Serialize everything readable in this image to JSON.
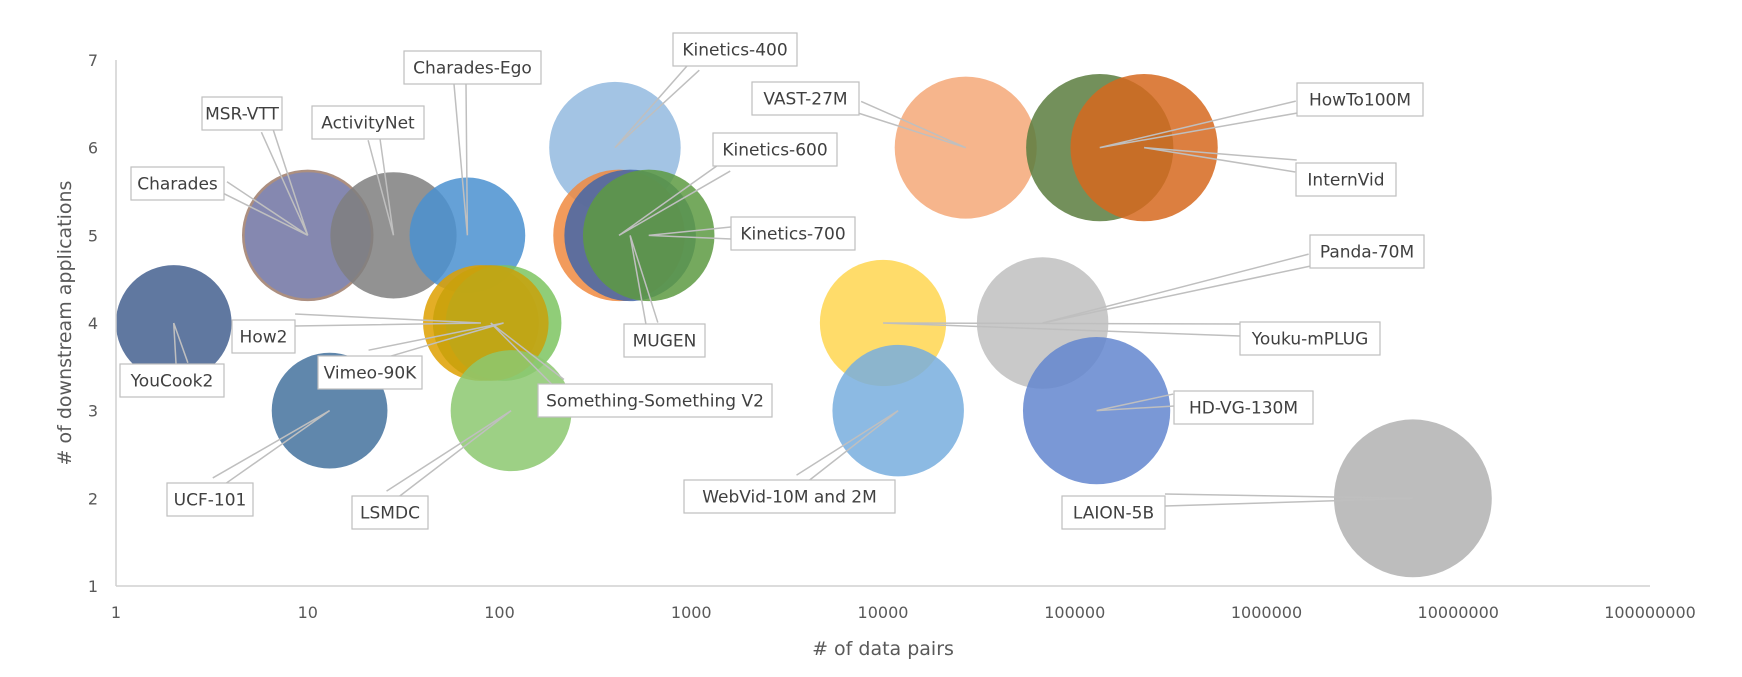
{
  "chart_data": {
    "type": "bubble",
    "title": "",
    "xlabel": "# of data pairs",
    "ylabel": "# of downstream applications",
    "x_scale": "log",
    "xlim": [
      1,
      100000000
    ],
    "ylim": [
      1,
      7
    ],
    "x_ticks": [
      "1",
      "10",
      "100",
      "1000",
      "10000",
      "100000",
      "1000000",
      "10000000",
      "100000000"
    ],
    "y_ticks": [
      "1",
      "2",
      "3",
      "4",
      "5",
      "6",
      "7"
    ],
    "grid": false,
    "series": [
      {
        "name": "Charades",
        "x": 10,
        "y": 5,
        "size": 0.125,
        "color": "#9e7b6a"
      },
      {
        "name": "MSR-VTT",
        "x": 10,
        "y": 5,
        "size": 0.12,
        "color": "#7e87b8"
      },
      {
        "name": "ActivityNet",
        "x": 28,
        "y": 5,
        "size": 0.12,
        "color": "#7f7f7f"
      },
      {
        "name": "Charades-Ego",
        "x": 68,
        "y": 5,
        "size": 0.11,
        "color": "#4a90d0"
      },
      {
        "name": "YouCook2",
        "x": 2,
        "y": 4,
        "size": 0.11,
        "color": "#44608f"
      },
      {
        "name": "How2",
        "x": 80,
        "y": 4,
        "size": 0.11,
        "color": "#dea000"
      },
      {
        "name": "Vimeo-90K",
        "x": 105,
        "y": 4,
        "size": 0.11,
        "color": "#7cc460"
      },
      {
        "name": "Something-Something V2",
        "x": 90,
        "y": 4,
        "size": 0.11,
        "color": "#c9a10a"
      },
      {
        "name": "UCF-101",
        "x": 13,
        "y": 3,
        "size": 0.11,
        "color": "#44729e"
      },
      {
        "name": "LSMDC",
        "x": 115,
        "y": 3,
        "size": 0.115,
        "color": "#8cc870"
      },
      {
        "name": "Kinetics-400",
        "x": 400,
        "y": 6,
        "size": 0.125,
        "color": "#93badf"
      },
      {
        "name": "Kinetics-600",
        "x": 420,
        "y": 5,
        "size": 0.125,
        "color": "#f08a40"
      },
      {
        "name": "MUGEN",
        "x": 480,
        "y": 5,
        "size": 0.125,
        "color": "#4466a8"
      },
      {
        "name": "Kinetics-700",
        "x": 600,
        "y": 5,
        "size": 0.125,
        "color": "#5d9a42"
      },
      {
        "name": "VAST-27M",
        "x": 27000,
        "y": 6,
        "size": 0.135,
        "color": "#f4a878"
      },
      {
        "name": "HowTo100M",
        "x": 135000,
        "y": 6,
        "size": 0.14,
        "color": "#5a7d3e"
      },
      {
        "name": "InternVid",
        "x": 230000,
        "y": 6,
        "size": 0.14,
        "color": "#d6681e"
      },
      {
        "name": "Panda-70M",
        "x": 68000,
        "y": 4,
        "size": 0.125,
        "color": "#bfbfbf"
      },
      {
        "name": "Youku-mPLUG",
        "x": 10000,
        "y": 4,
        "size": 0.12,
        "color": "#ffd650"
      },
      {
        "name": "WebVid-10M and 2M",
        "x": 12000,
        "y": 3,
        "size": 0.125,
        "color": "#78aede"
      },
      {
        "name": "HD-VG-130M",
        "x": 130000,
        "y": 3,
        "size": 0.14,
        "color": "#6386cf"
      },
      {
        "name": "LAION-5B",
        "x": 5800000,
        "y": 2,
        "size": 0.15,
        "color": "#b2b2b2"
      }
    ]
  }
}
